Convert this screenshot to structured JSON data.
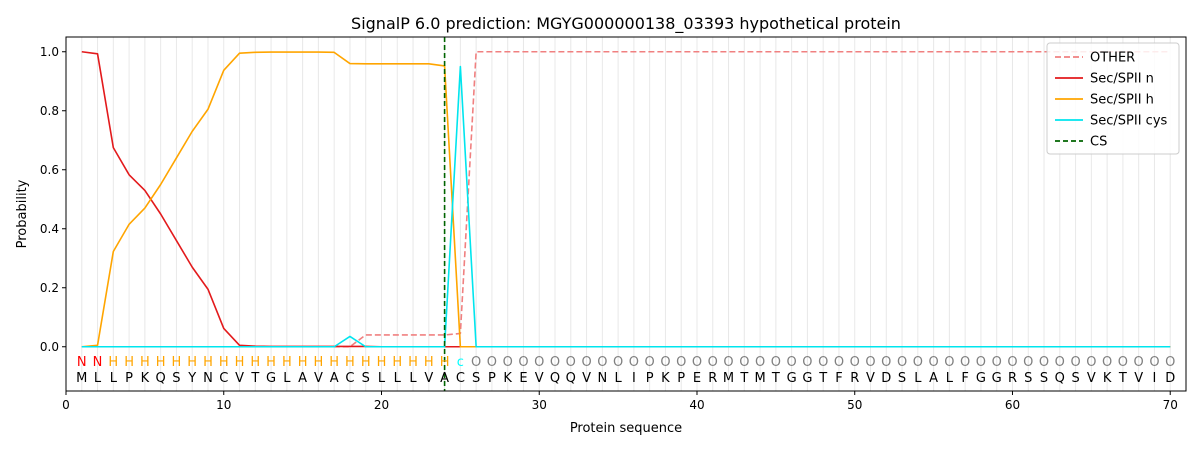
{
  "chart_data": {
    "type": "line",
    "title": "SignalP 6.0 prediction: MGYG000000138_03393 hypothetical protein",
    "xlabel": "Protein sequence",
    "ylabel": "Probability",
    "xlim": [
      0,
      71
    ],
    "ylim": [
      -0.15,
      1.05
    ],
    "x_ticks": [
      0,
      10,
      20,
      30,
      40,
      50,
      60,
      70
    ],
    "y_ticks": [
      0.0,
      0.2,
      0.4,
      0.6,
      0.8,
      1.0
    ],
    "x_tick_labels": [
      "0",
      "10",
      "20",
      "30",
      "40",
      "50",
      "60",
      "70"
    ],
    "y_tick_labels": [
      "0.0",
      "0.2",
      "0.4",
      "0.6",
      "0.8",
      "1.0"
    ],
    "legend_position": "top-right",
    "sequence": [
      "M",
      "L",
      "L",
      "P",
      "K",
      "Q",
      "S",
      "Y",
      "N",
      "C",
      "V",
      "T",
      "G",
      "L",
      "A",
      "V",
      "A",
      "C",
      "S",
      "L",
      "L",
      "L",
      "V",
      "A",
      "C",
      "S",
      "P",
      "K",
      "E",
      "V",
      "Q",
      "Q",
      "V",
      "N",
      "L",
      "I",
      "P",
      "K",
      "P",
      "E",
      "R",
      "M",
      "T",
      "M",
      "T",
      "G",
      "G",
      "T",
      "F",
      "R",
      "V",
      "D",
      "S",
      "L",
      "A",
      "L",
      "F",
      "G",
      "G",
      "R",
      "S",
      "S",
      "Q",
      "S",
      "V",
      "K",
      "T",
      "V",
      "I",
      "D"
    ],
    "annotation": [
      "N",
      "N",
      "H",
      "H",
      "H",
      "H",
      "H",
      "H",
      "H",
      "H",
      "H",
      "H",
      "H",
      "H",
      "H",
      "H",
      "H",
      "H",
      "H",
      "H",
      "H",
      "H",
      "H",
      "H",
      "c",
      "O",
      "O",
      "O",
      "O",
      "O",
      "O",
      "O",
      "O",
      "O",
      "O",
      "O",
      "O",
      "O",
      "O",
      "O",
      "O",
      "O",
      "O",
      "O",
      "O",
      "O",
      "O",
      "O",
      "O",
      "O",
      "O",
      "O",
      "O",
      "O",
      "O",
      "O",
      "O",
      "O",
      "O",
      "O",
      "O",
      "O",
      "O",
      "O",
      "O",
      "O",
      "O",
      "O",
      "O",
      "O"
    ],
    "annotation_colors": {
      "N": "#ff0000",
      "H": "#ffa500",
      "c": "#00ffff",
      "O": "#808080"
    },
    "cs_position": 24,
    "series": [
      {
        "name": "OTHER",
        "color": "#f08080",
        "dash": true,
        "values": [
          0,
          0,
          0,
          0,
          0,
          0,
          0,
          0,
          0,
          0,
          0,
          0,
          0,
          0,
          0,
          0,
          0,
          0,
          0.04,
          0.04,
          0.04,
          0.04,
          0.04,
          0.04,
          0.045,
          1.0,
          1.0,
          1.0,
          1.0,
          1.0,
          1.0,
          1.0,
          1.0,
          1.0,
          1.0,
          1.0,
          1.0,
          1.0,
          1.0,
          1.0,
          1.0,
          1.0,
          1.0,
          1.0,
          1.0,
          1.0,
          1.0,
          1.0,
          1.0,
          1.0,
          1.0,
          1.0,
          1.0,
          1.0,
          1.0,
          1.0,
          1.0,
          1.0,
          1.0,
          1.0,
          1.0,
          1.0,
          1.0,
          1.0,
          1.0,
          1.0,
          1.0,
          1.0,
          1.0,
          1.0
        ]
      },
      {
        "name": "Sec/SPII n",
        "color": "#e31a1c",
        "dash": false,
        "values": [
          1.0,
          0.993,
          0.675,
          0.583,
          0.53,
          0.45,
          0.36,
          0.27,
          0.195,
          0.062,
          0.005,
          0.002,
          0.001,
          0.001,
          0.001,
          0.001,
          0.001,
          0.001,
          0.001,
          0,
          0,
          0,
          0,
          0,
          0,
          0,
          0,
          0,
          0,
          0,
          0,
          0,
          0,
          0,
          0,
          0,
          0,
          0,
          0,
          0,
          0,
          0,
          0,
          0,
          0,
          0,
          0,
          0,
          0,
          0,
          0,
          0,
          0,
          0,
          0,
          0,
          0,
          0,
          0,
          0,
          0,
          0,
          0,
          0,
          0,
          0,
          0,
          0,
          0,
          0
        ]
      },
      {
        "name": "Sec/SPII h",
        "color": "#ffa500",
        "dash": false,
        "values": [
          0,
          0.005,
          0.323,
          0.415,
          0.47,
          0.55,
          0.64,
          0.73,
          0.805,
          0.937,
          0.995,
          0.998,
          0.999,
          0.999,
          0.999,
          0.999,
          0.998,
          0.96,
          0.959,
          0.959,
          0.959,
          0.959,
          0.959,
          0.952,
          0,
          0,
          0,
          0,
          0,
          0,
          0,
          0,
          0,
          0,
          0,
          0,
          0,
          0,
          0,
          0,
          0,
          0,
          0,
          0,
          0,
          0,
          0,
          0,
          0,
          0,
          0,
          0,
          0,
          0,
          0,
          0,
          0,
          0,
          0,
          0,
          0,
          0,
          0,
          0,
          0,
          0,
          0,
          0,
          0,
          0
        ]
      },
      {
        "name": "Sec/SPII cys",
        "color": "#00e5ee",
        "dash": false,
        "values": [
          0,
          0,
          0,
          0,
          0,
          0,
          0,
          0,
          0,
          0,
          0,
          0,
          0,
          0,
          0,
          0,
          0,
          0.035,
          0,
          0,
          0,
          0,
          0,
          0,
          0.95,
          0,
          0,
          0,
          0,
          0,
          0,
          0,
          0,
          0,
          0,
          0,
          0,
          0,
          0,
          0,
          0,
          0,
          0,
          0,
          0,
          0,
          0,
          0,
          0,
          0,
          0,
          0,
          0,
          0,
          0,
          0,
          0,
          0,
          0,
          0,
          0,
          0,
          0,
          0,
          0,
          0,
          0,
          0,
          0,
          0
        ]
      }
    ],
    "cs_series": {
      "name": "CS",
      "color": "#006400"
    }
  }
}
